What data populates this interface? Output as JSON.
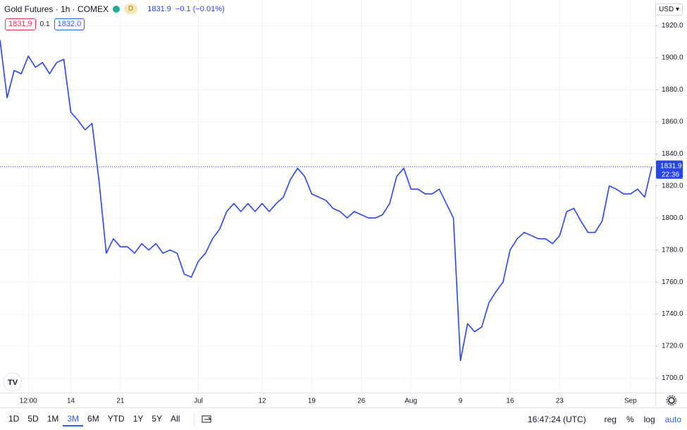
{
  "chart_data": {
    "type": "line",
    "color": "#2846f0",
    "grid": true,
    "ylim": [
      1691,
      1936
    ],
    "yticks": [
      {
        "value": 1700,
        "label": "1700.0"
      },
      {
        "value": 1720,
        "label": "1720.0"
      },
      {
        "value": 1740,
        "label": "1740.0"
      },
      {
        "value": 1760,
        "label": "1760.0"
      },
      {
        "value": 1780,
        "label": "1780.0"
      },
      {
        "value": 1800,
        "label": "1800.0"
      },
      {
        "value": 1820,
        "label": "1820.0"
      },
      {
        "value": 1840,
        "label": "1840.0"
      },
      {
        "value": 1860,
        "label": "1860.0"
      },
      {
        "value": 1880,
        "label": "1880.0"
      },
      {
        "value": 1900,
        "label": "1900.0"
      },
      {
        "value": 1920,
        "label": "1920.0"
      }
    ],
    "categories": [
      null,
      null,
      null,
      null,
      "12:00",
      null,
      null,
      null,
      null,
      null,
      "14",
      null,
      null,
      null,
      null,
      null,
      null,
      "21",
      null,
      null,
      null,
      null,
      null,
      null,
      null,
      null,
      null,
      null,
      "Jul",
      null,
      null,
      null,
      null,
      null,
      null,
      null,
      null,
      "12",
      null,
      null,
      null,
      null,
      null,
      null,
      "19",
      null,
      null,
      null,
      null,
      null,
      null,
      "26",
      null,
      null,
      null,
      null,
      null,
      null,
      "Aug",
      null,
      null,
      null,
      null,
      null,
      null,
      "9",
      null,
      null,
      null,
      null,
      null,
      null,
      "16",
      null,
      null,
      null,
      null,
      null,
      null,
      "23",
      null,
      null,
      null,
      null,
      null,
      null,
      null,
      null,
      null,
      "Sep",
      null,
      null,
      null
    ],
    "values": [
      1911,
      1875,
      1892,
      1890,
      1901,
      1894,
      1897,
      1890,
      1897,
      1899,
      1866,
      1861,
      1855,
      1859,
      1822,
      1778,
      1787,
      1782,
      1782,
      1778,
      1784,
      1780,
      1784,
      1778,
      1780,
      1778,
      1765,
      1763,
      1773,
      1778,
      1787,
      1793,
      1804,
      1809,
      1804,
      1809,
      1804,
      1809,
      1804,
      1809,
      1813,
      1824,
      1831,
      1826,
      1815,
      1813,
      1811,
      1806,
      1804,
      1800,
      1804,
      1802,
      1800,
      1800,
      1802,
      1809,
      1826,
      1831,
      1818,
      1818,
      1815,
      1815,
      1818,
      1809,
      1800,
      1711,
      1734,
      1729,
      1732,
      1747,
      1754,
      1760,
      1780,
      1787,
      1791,
      1789,
      1787,
      1787,
      1784,
      1789,
      1804,
      1806,
      1798,
      1791,
      1791,
      1798,
      1820,
      1818,
      1815,
      1815,
      1818,
      1813,
      1831.9
    ]
  },
  "ui": {
    "header": {
      "symbol": "Gold Futures · 1h · COMEX",
      "badge": "D",
      "price": "1831.9",
      "change": "−0.1 (−0.01%)"
    },
    "bid": "1831.9",
    "spread": "0.1",
    "ask": "1832.0",
    "currency": "USD",
    "countdown": "22:36",
    "ranges": [
      "1D",
      "5D",
      "1M",
      "3M",
      "6M",
      "YTD",
      "1Y",
      "5Y",
      "All"
    ],
    "selected_range": "3M",
    "clock": "16:47:24 (UTC)",
    "options": [
      "reg",
      "%",
      "log",
      "auto"
    ]
  }
}
